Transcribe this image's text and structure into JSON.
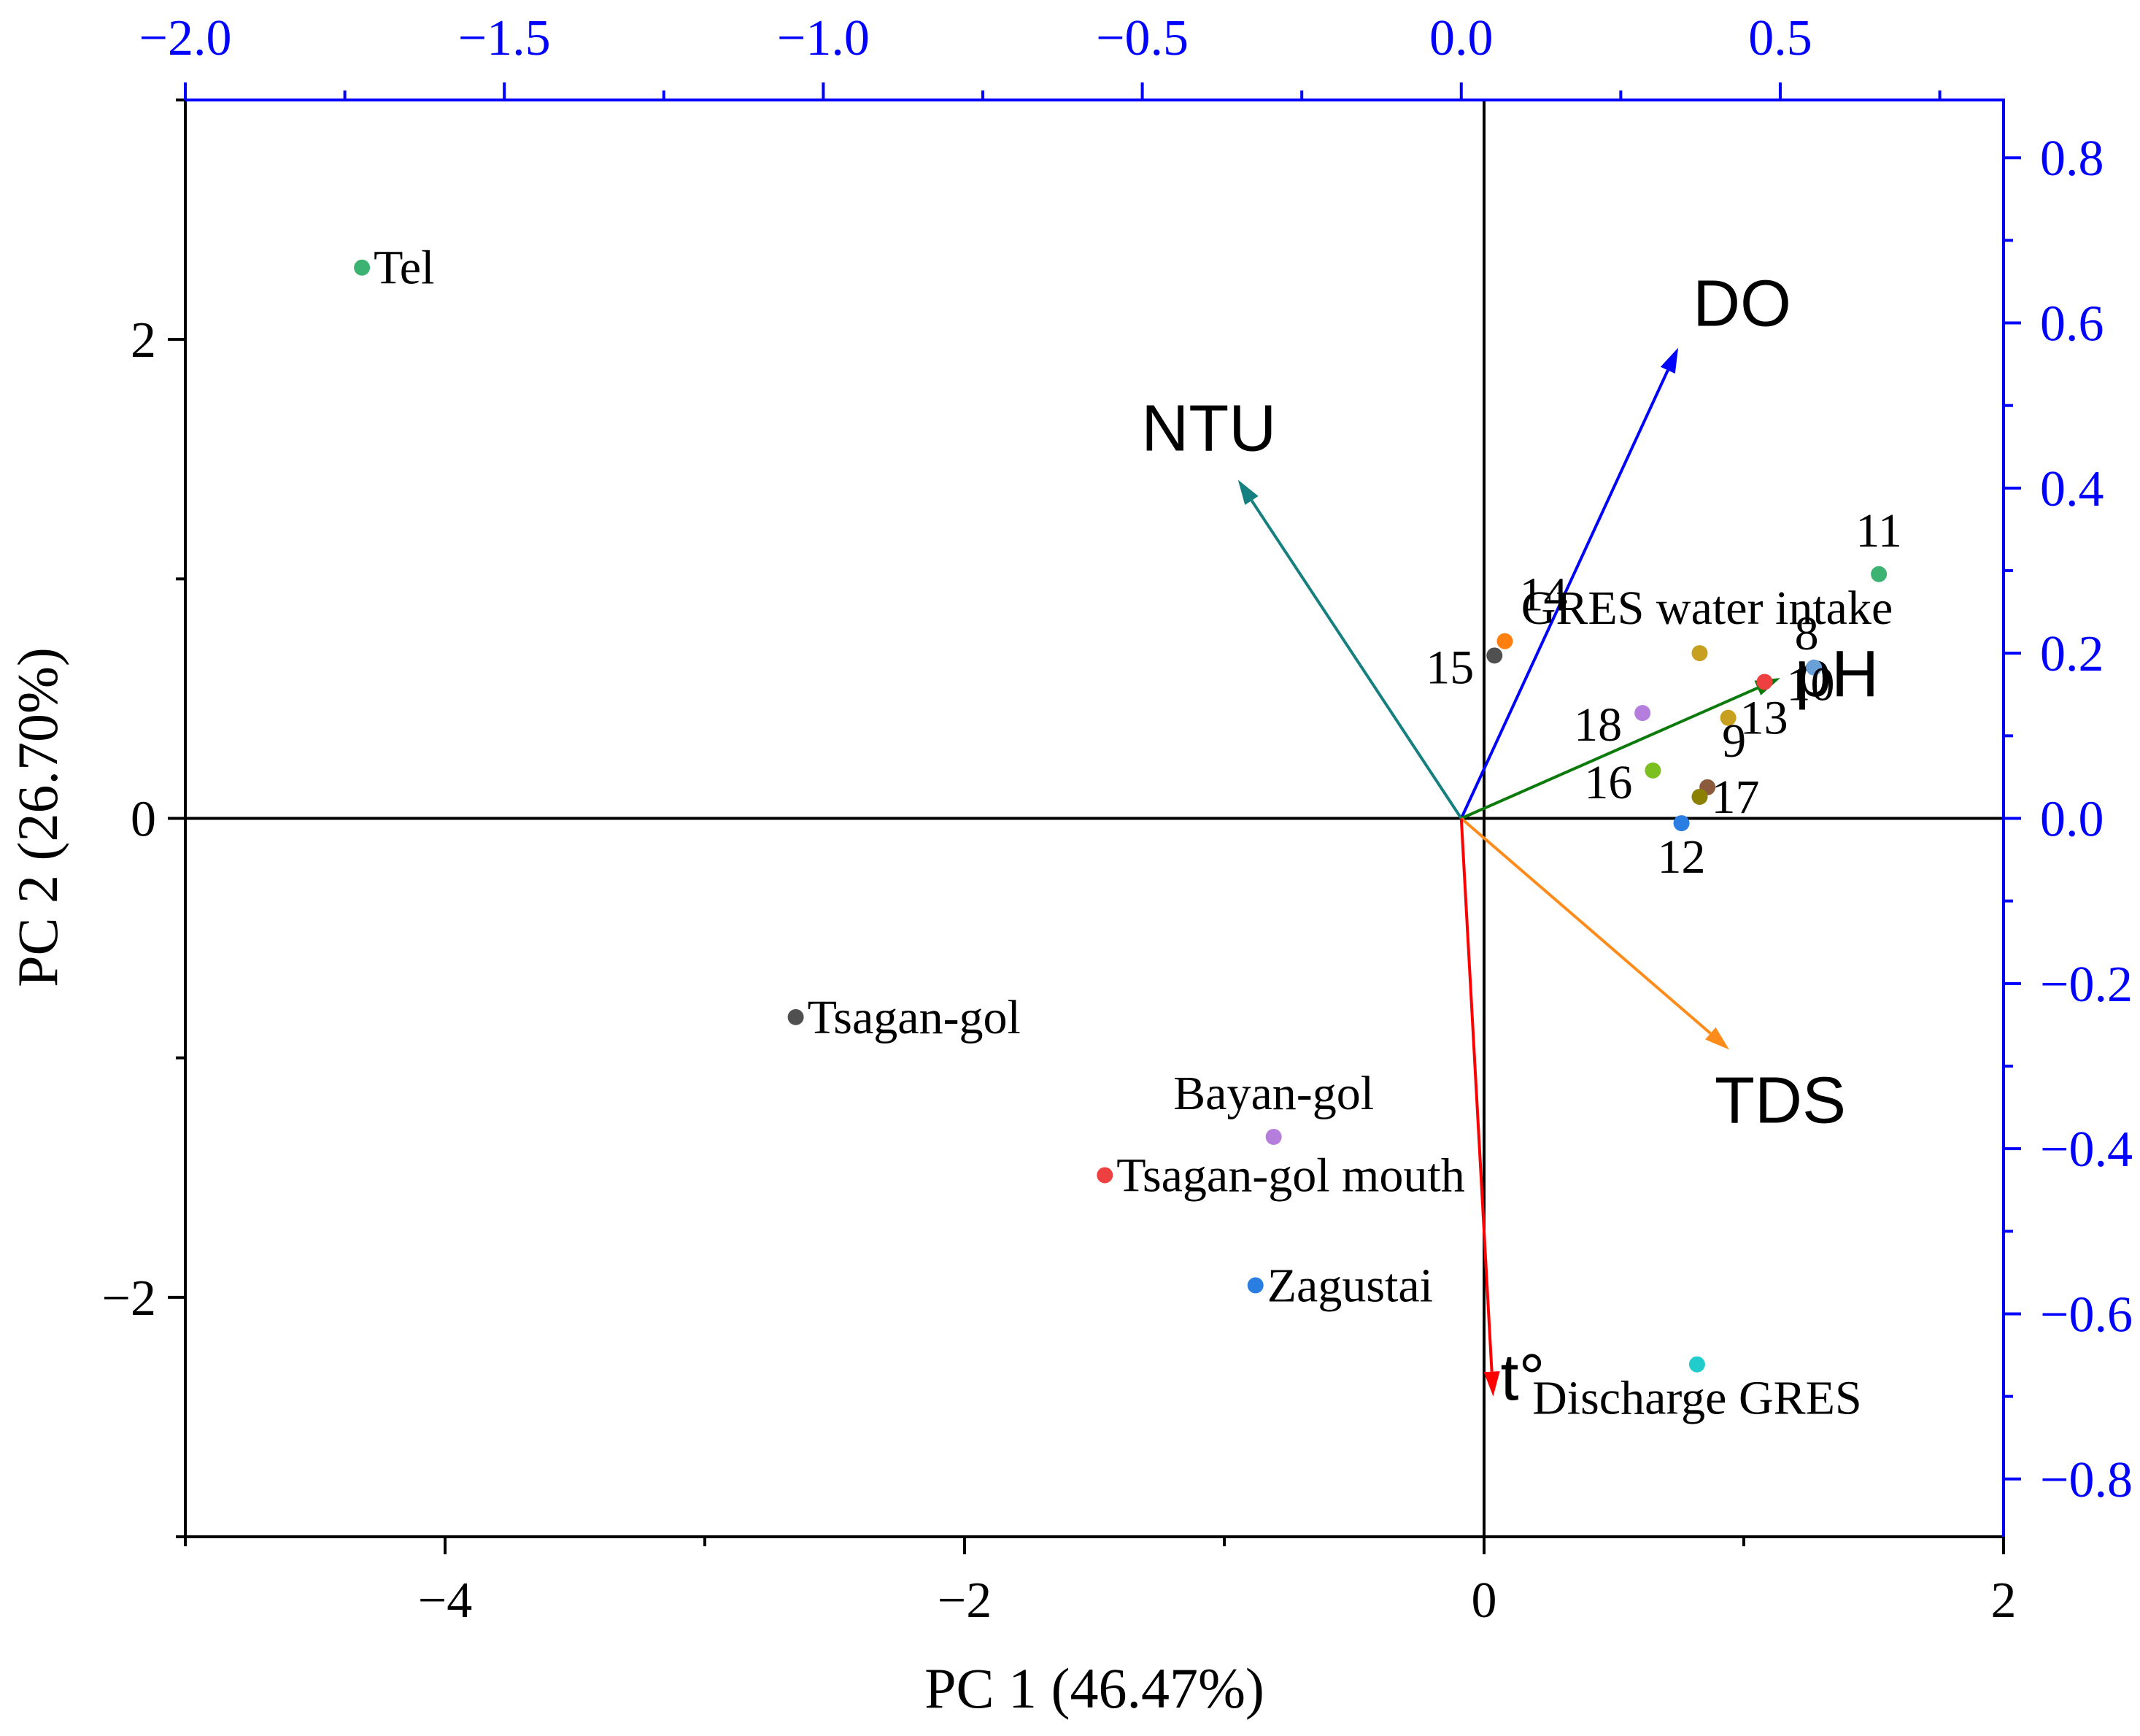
{
  "chart_data": {
    "type": "scatter",
    "title": "",
    "xlabel": "PC 1 (46.47%)",
    "ylabel": "PC 2 (26.70%)",
    "xlim": [
      -5,
      2
    ],
    "ylim": [
      -3,
      3
    ],
    "x_ticks": [
      -4,
      -2,
      0,
      2
    ],
    "x_tick_labels": [
      "−4",
      "−2",
      "0",
      "2"
    ],
    "y_ticks": [
      -2,
      0,
      2
    ],
    "y_tick_labels": [
      "−2",
      "0",
      "2"
    ],
    "top_axis": {
      "lim": [
        -2.0,
        0.85
      ],
      "ticks": [
        -2.0,
        -1.5,
        -1.0,
        -0.5,
        0.0,
        0.5
      ],
      "tick_labels": [
        "−2.0",
        "−1.5",
        "−1.0",
        "−0.5",
        "0.0",
        "0.5"
      ],
      "color": "#0000ff"
    },
    "right_axis": {
      "lim": [
        -0.87,
        0.87
      ],
      "ticks": [
        -0.8,
        -0.6,
        -0.4,
        -0.2,
        0.0,
        0.2,
        0.4,
        0.6,
        0.8
      ],
      "tick_labels": [
        "−0.8",
        "−0.6",
        "−0.4",
        "−0.2",
        "0.0",
        "0.2",
        "0.4",
        "0.6",
        "0.8"
      ],
      "color": "#0000ff"
    },
    "points": [
      {
        "label": "Tel",
        "x": -4.32,
        "y": 2.3,
        "color": "#3cb371",
        "label_pos": "right"
      },
      {
        "label": "Tsagan-gol",
        "x": -2.65,
        "y": -0.83,
        "color": "#505050",
        "label_pos": "right"
      },
      {
        "label": "Bayan-gol",
        "x": -0.81,
        "y": -1.33,
        "color": "#b57edc",
        "label_pos": "above"
      },
      {
        "label": "Tsagan-gol mouth",
        "x": -1.46,
        "y": -1.49,
        "color": "#ee4040",
        "label_pos": "right"
      },
      {
        "label": "Zagustai",
        "x": -0.88,
        "y": -1.95,
        "color": "#2a7de1",
        "label_pos": "right"
      },
      {
        "label": "Discharge GRES",
        "x": 0.82,
        "y": -2.28,
        "color": "#22cccc",
        "label_pos": "below"
      },
      {
        "label": "GRES water intake",
        "x": 0.83,
        "y": 0.69,
        "color": "#c8a020",
        "label_pos": "above-center"
      },
      {
        "label": "11",
        "x": 1.52,
        "y": 1.02,
        "color": "#3cb371",
        "label_pos": "above"
      },
      {
        "label": "14",
        "x": 0.08,
        "y": 0.74,
        "color": "#ff7f0e",
        "label_pos": "above-right"
      },
      {
        "label": "15",
        "x": 0.04,
        "y": 0.68,
        "color": "#505050",
        "label_pos": "left-below"
      },
      {
        "label": "8",
        "x": 1.27,
        "y": 0.63,
        "color": "#6aa0d8",
        "label_pos": "above-small"
      },
      {
        "label": "10",
        "x": 1.08,
        "y": 0.57,
        "color": "#ee4040",
        "label_pos": "below-right"
      },
      {
        "label": "18",
        "x": 0.61,
        "y": 0.44,
        "color": "#b57edc",
        "label_pos": "left-below"
      },
      {
        "label": "13",
        "x": 0.94,
        "y": 0.42,
        "color": "#c8a020",
        "label_pos": "right"
      },
      {
        "label": "9",
        "x": 0.86,
        "y": 0.13,
        "color": "#8b5a3c",
        "label_pos": "above-right"
      },
      {
        "label": "16",
        "x": 0.65,
        "y": 0.2,
        "color": "#7cc020",
        "label_pos": "left-below"
      },
      {
        "label": "17",
        "x": 0.83,
        "y": 0.09,
        "color": "#8b8000",
        "label_pos": "right"
      },
      {
        "label": "12",
        "x": 0.76,
        "y": -0.02,
        "color": "#2a7de1",
        "label_pos": "below"
      }
    ],
    "vectors": [
      {
        "label": "DO",
        "x": 0.34,
        "y": 0.57,
        "color": "#0000ff"
      },
      {
        "label": "NTU",
        "x": -0.35,
        "y": 0.41,
        "color": "#167f7f"
      },
      {
        "label": "pH",
        "x": 0.5,
        "y": 0.17,
        "color": "#0a7a0a"
      },
      {
        "label": "TDS",
        "x": 0.42,
        "y": -0.28,
        "color": "#ff8c1a"
      },
      {
        "label": "t°",
        "x": 0.05,
        "y": -0.7,
        "color": "#ff0000"
      }
    ]
  }
}
